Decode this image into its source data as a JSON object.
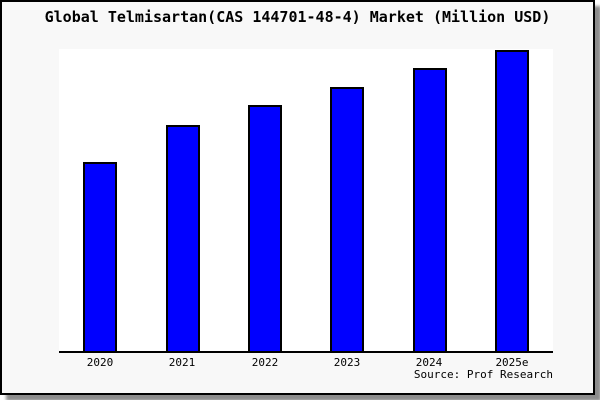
{
  "chart_data": {
    "type": "bar",
    "title": "Global Telmisartan(CAS 144701-48-4) Market (Million USD)",
    "categories": [
      "2020",
      "2021",
      "2022",
      "2023",
      "2024",
      "2025e"
    ],
    "values": [
      62.8,
      75.1,
      81.7,
      87.7,
      94.0,
      100.0
    ],
    "note": "no numeric y-axis or gridlines shown; values are relative bar heights with 2025e = 100",
    "xlabel": "",
    "ylabel": "",
    "legend": false,
    "grid": false,
    "bar_color": "#0000ff",
    "bar_border_color": "#000000",
    "plot_background": "#ffffff",
    "panel_background": "#f8f8f8",
    "source": "Source: Prof Research"
  }
}
